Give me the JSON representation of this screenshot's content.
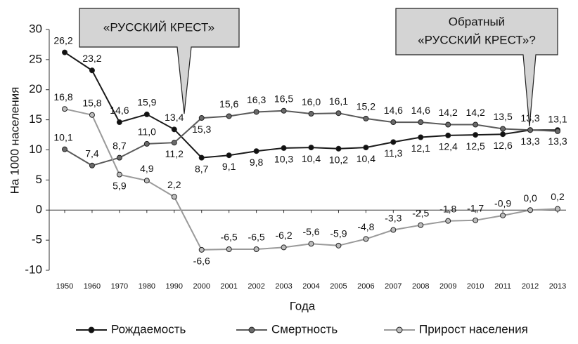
{
  "chart_data": {
    "type": "line",
    "ylabel": "На 1000 населения",
    "xlabel": "Года",
    "annotations": [
      "«РУССКИЙ КРЕСТ»",
      "Обратный",
      "«РУССКИЙ КРЕСТ»?"
    ],
    "categories": [
      "1950",
      "1960",
      "1970",
      "1980",
      "1990",
      "2000",
      "2001",
      "2002",
      "2003",
      "2004",
      "2005",
      "2006",
      "2007",
      "2008",
      "2009",
      "2010",
      "2011",
      "2012",
      "2013"
    ],
    "ylim": [
      -10,
      30
    ],
    "yticks": [
      -10,
      -5,
      0,
      5,
      10,
      15,
      20,
      25,
      30
    ],
    "series": [
      {
        "name": "Рождаемость",
        "color": "#1a1a1a",
        "values": [
          26.2,
          23.2,
          14.6,
          15.9,
          13.4,
          8.7,
          9.1,
          9.8,
          10.3,
          10.4,
          10.2,
          10.4,
          11.3,
          12.1,
          12.4,
          12.5,
          12.6,
          13.3,
          13.3
        ],
        "value_labels": [
          "26,2",
          "23,2",
          "14,6",
          "15,9",
          "13,4",
          "8,7",
          "9,1",
          "9,8",
          "10,3",
          "10,4",
          "10,2",
          "10,4",
          "11,3",
          "12,1",
          "12,4",
          "12,5",
          "12,6",
          "13,3",
          "13,3"
        ]
      },
      {
        "name": "Смертность",
        "color": "#5a5a5a",
        "values": [
          10.1,
          7.4,
          8.7,
          11.0,
          11.2,
          15.3,
          15.6,
          16.3,
          16.5,
          16.0,
          16.1,
          15.2,
          14.6,
          14.6,
          14.2,
          14.2,
          13.5,
          13.3,
          13.1
        ],
        "value_labels": [
          "10,1",
          "7,4",
          "8,7",
          "11,0",
          "11,2",
          "15,3",
          "15,6",
          "16,3",
          "16,5",
          "16,0",
          "16,1",
          "15,2",
          "14,6",
          "14,6",
          "14,2",
          "14,2",
          "13,5",
          "13,3",
          "13,1"
        ]
      },
      {
        "name": "Прирост населения",
        "color": "#9a9a9a",
        "values": [
          16.8,
          15.8,
          5.9,
          4.9,
          2.2,
          -6.6,
          -6.5,
          -6.5,
          -6.2,
          -5.6,
          -5.9,
          -4.8,
          -3.3,
          -2.5,
          -1.8,
          -1.7,
          -0.9,
          0.0,
          0.2
        ],
        "value_labels": [
          "16,8",
          "15,8",
          "5,9",
          "4,9",
          "2,2",
          "-6,6",
          "-6,5",
          "-6,5",
          "-6,2",
          "-5,6",
          "-5,9",
          "-4,8",
          "-3,3",
          "-2,5",
          "-1,8",
          "-1,7",
          "-0,9",
          "0,0",
          "0,2"
        ]
      }
    ]
  }
}
